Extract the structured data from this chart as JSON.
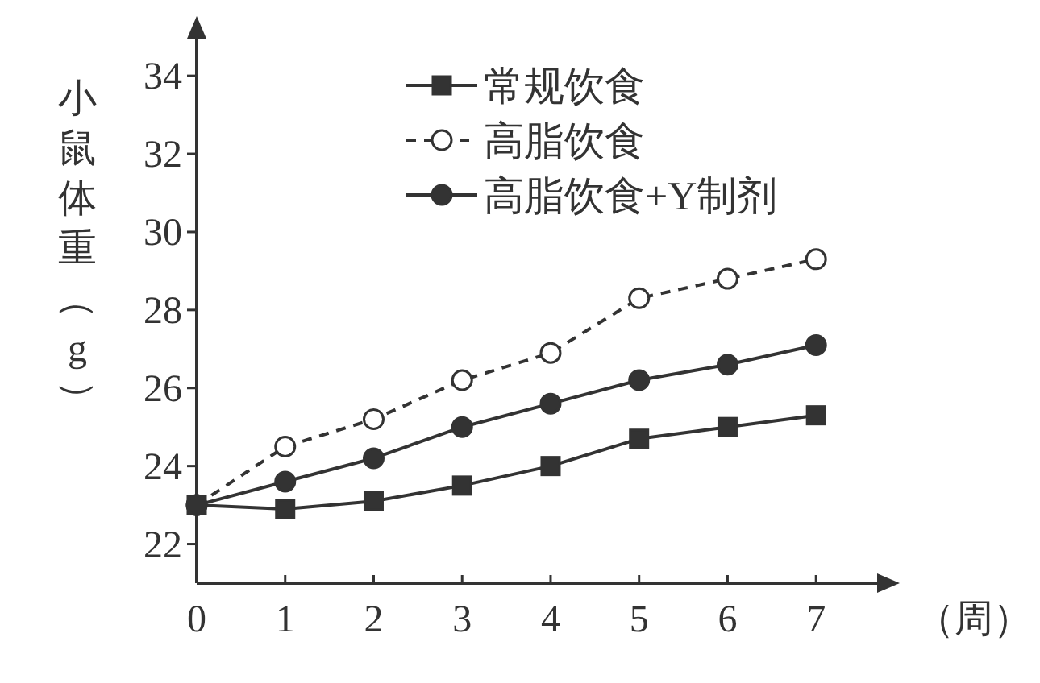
{
  "chart_data": {
    "type": "line",
    "ylabel": "小鼠体重（g）",
    "xlabel": "（周）",
    "x": [
      0,
      1,
      2,
      3,
      4,
      5,
      6,
      7
    ],
    "xlim": [
      0,
      7.8
    ],
    "xticks": [
      0,
      1,
      2,
      3,
      4,
      5,
      6,
      7
    ],
    "ylim": [
      21,
      35.2
    ],
    "yticks": [
      22,
      24,
      26,
      28,
      30,
      32,
      34
    ],
    "grid": false,
    "legend": "top right",
    "series": [
      {
        "name": "常规饮食",
        "color": "#333333",
        "marker": "square",
        "line_style": "solid",
        "values": [
          23.0,
          22.9,
          23.1,
          23.5,
          24.0,
          24.7,
          25.0,
          25.3
        ]
      },
      {
        "name": "高脂饮食",
        "color": "#333333",
        "marker": "circle",
        "line_style": "dashed",
        "values": [
          23.0,
          24.5,
          25.2,
          26.2,
          26.9,
          28.3,
          28.8,
          29.3
        ]
      },
      {
        "name": "高脂饮食+Y制剂",
        "color": "#333333",
        "marker": "circle",
        "line_style": "solid",
        "values": [
          23.0,
          23.6,
          24.2,
          25.0,
          25.6,
          26.2,
          26.6,
          27.1
        ]
      }
    ]
  }
}
